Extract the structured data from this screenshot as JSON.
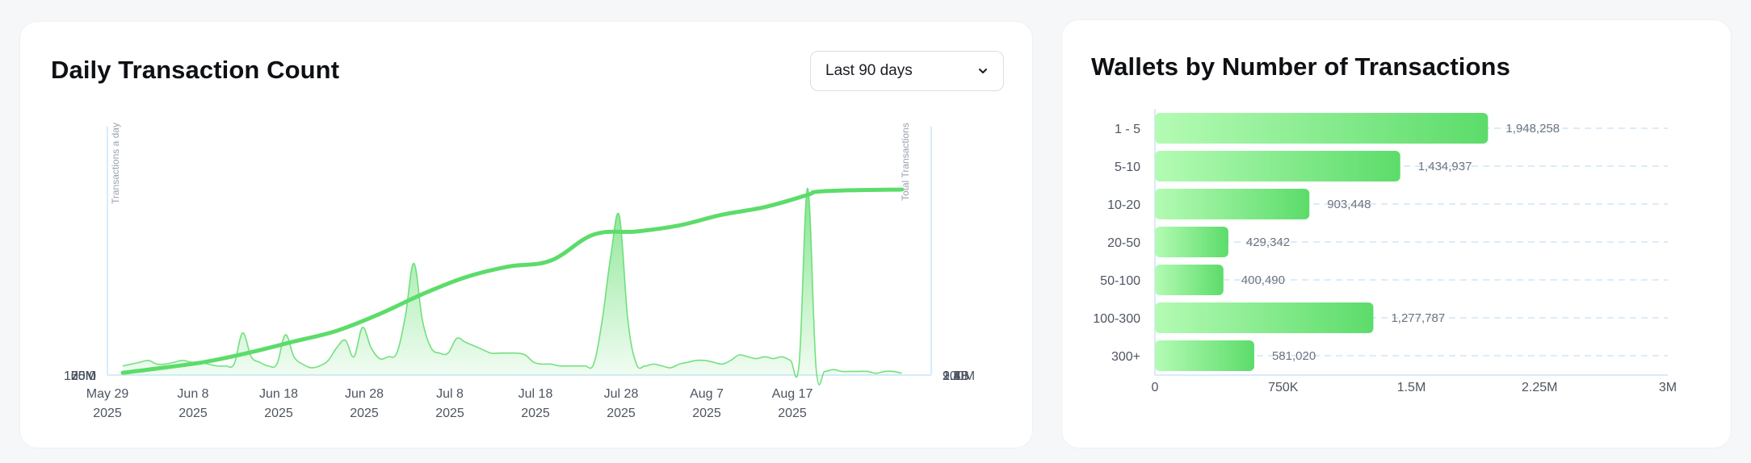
{
  "left_card": {
    "title": "Daily Transaction Count",
    "range_select": {
      "value": "Last 90 days",
      "icon": "chevron-down-icon"
    }
  },
  "right_card": {
    "title": "Wallets by Number of Transactions"
  },
  "colors": {
    "accent": "#5cdc6a",
    "accent_light": "#b4fbb4",
    "grid": "#cfe6f7",
    "axis": "#d6ecfb"
  },
  "chart_data": [
    {
      "type": "area",
      "title": "Daily Transaction Count",
      "x_tick_labels": [
        [
          "May 29",
          "2025"
        ],
        [
          "Jun 8",
          "2025"
        ],
        [
          "Jun 18",
          "2025"
        ],
        [
          "Jun 28",
          "2025"
        ],
        [
          "Jul 8",
          "2025"
        ],
        [
          "Jul 18",
          "2025"
        ],
        [
          "Jul 28",
          "2025"
        ],
        [
          "Aug 7",
          "2025"
        ],
        [
          "Aug 17",
          "2025"
        ]
      ],
      "y_left": {
        "label": "Transactions a day",
        "ticks": [
          "0",
          "25M",
          "50M",
          "75M",
          "100M",
          "125M"
        ],
        "range": [
          0,
          125000000
        ]
      },
      "y_right": {
        "label": "Total Transactions",
        "ticks": [
          "900M",
          "1.2B",
          "1.5B",
          "1.8B",
          "2.1B",
          "2.4B"
        ],
        "range": [
          900000000,
          2400000000
        ]
      },
      "grid": true,
      "series": [
        {
          "kind": "area",
          "axis": "left",
          "days": [
            0,
            1,
            2,
            3,
            4,
            5,
            6,
            7,
            8,
            9,
            10,
            11,
            12,
            13,
            14,
            15,
            16,
            17,
            18,
            19,
            20,
            21,
            22,
            23,
            24,
            25,
            26,
            27,
            28,
            29,
            30,
            31,
            32,
            33,
            34,
            35,
            36,
            37,
            38,
            39,
            40,
            41,
            42,
            43,
            44,
            45,
            46,
            47,
            48,
            49,
            50,
            51,
            52,
            53,
            54,
            55,
            56,
            57,
            58,
            59,
            60,
            61,
            62,
            63,
            64,
            65,
            66,
            67,
            68,
            69,
            70,
            71,
            72,
            73,
            74,
            75,
            76,
            77,
            78,
            79,
            80,
            81,
            82,
            83,
            84,
            85,
            86,
            87,
            88,
            89,
            90,
            91
          ],
          "values": [
            5,
            6,
            7,
            8,
            6,
            6,
            7,
            8,
            7,
            7,
            6,
            5,
            5,
            6,
            23,
            10,
            7,
            5,
            6,
            22,
            10,
            6,
            4,
            5,
            8,
            15,
            19,
            10,
            26,
            15,
            9,
            10,
            12,
            32,
            61,
            30,
            15,
            12,
            12,
            20,
            18,
            16,
            14,
            12,
            12,
            12,
            12,
            11,
            7,
            6,
            6,
            5,
            5,
            5,
            5,
            6,
            30,
            65,
            87,
            30,
            6,
            5,
            6,
            5,
            4,
            6,
            7,
            8,
            8,
            7,
            6,
            8,
            11,
            10,
            9,
            10,
            9,
            10,
            8,
            6,
            102,
            3,
            2,
            3,
            2,
            2,
            2,
            2,
            1,
            2,
            2,
            1
          ]
        },
        {
          "kind": "line",
          "axis": "right",
          "days": [
            0,
            5,
            10,
            15,
            20,
            25,
            30,
            35,
            40,
            45,
            50,
            55,
            60,
            65,
            70,
            75,
            80,
            81,
            85,
            91
          ],
          "values": [
            915,
            950,
            990,
            1050,
            1120,
            1190,
            1300,
            1430,
            1540,
            1610,
            1650,
            1820,
            1840,
            1880,
            1950,
            2000,
            2080,
            2100,
            2110,
            2115
          ]
        }
      ]
    },
    {
      "type": "bar",
      "orientation": "horizontal",
      "title": "Wallets by Number of Transactions",
      "categories": [
        "1 - 5",
        "5-10",
        "10-20",
        "20-50",
        "50-100",
        "100-300",
        "300+"
      ],
      "values": [
        1948258,
        1434937,
        903448,
        429342,
        400490,
        1277787,
        581020
      ],
      "value_labels": [
        "1,948,258",
        "1,434,937",
        "903,448",
        "429,342",
        "400,490",
        "1,277,787",
        "581,020"
      ],
      "x_ticks": [
        "0",
        "750K",
        "1.5M",
        "2.25M",
        "3M"
      ],
      "xlim": [
        0,
        3000000
      ],
      "grid": true
    }
  ]
}
